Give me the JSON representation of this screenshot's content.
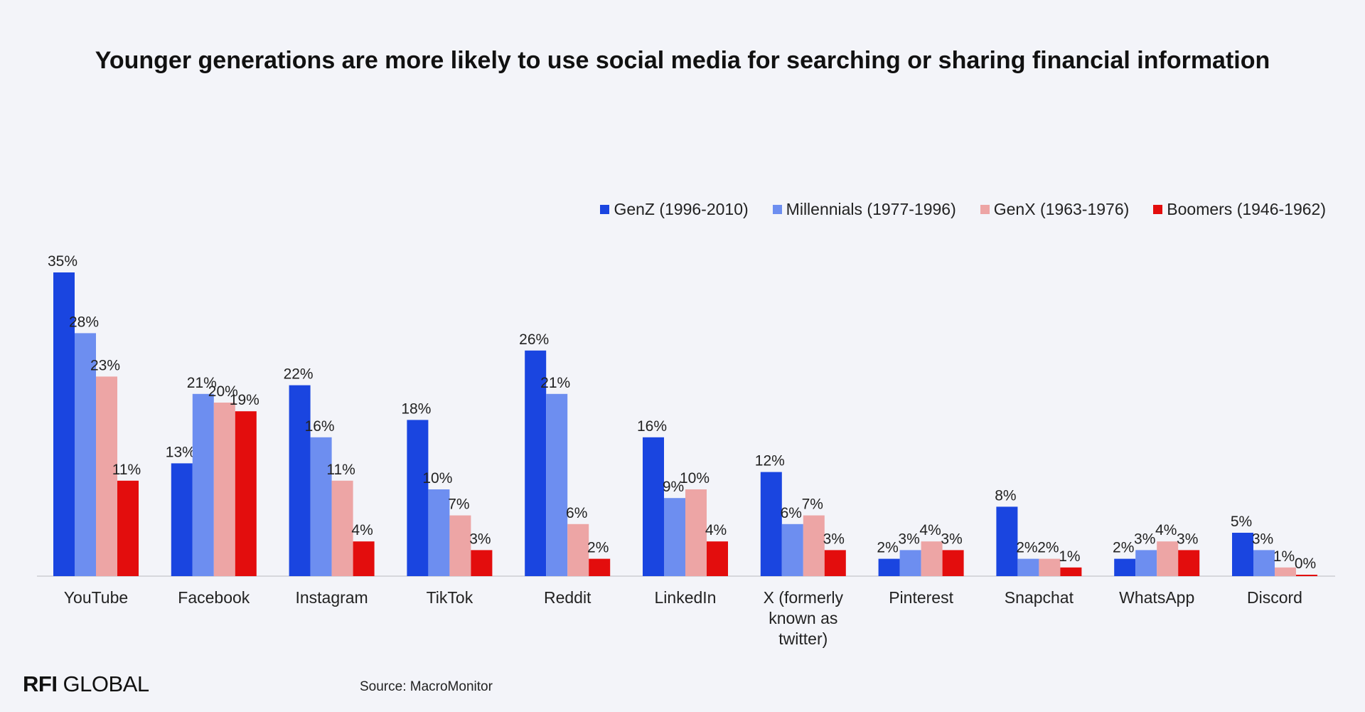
{
  "chart_data": {
    "type": "bar",
    "title": "Younger generations are more likely to use social media for searching or sharing financial information",
    "categories": [
      "YouTube",
      "Facebook",
      "Instagram",
      "TikTok",
      "Reddit",
      "LinkedIn",
      "X (formerly known as twitter)",
      "Pinterest",
      "Snapchat",
      "WhatsApp",
      "Discord"
    ],
    "category_lines": [
      [
        "YouTube"
      ],
      [
        "Facebook"
      ],
      [
        "Instagram"
      ],
      [
        "TikTok"
      ],
      [
        "Reddit"
      ],
      [
        "LinkedIn"
      ],
      [
        "X (formerly",
        "known as",
        "twitter)"
      ],
      [
        "Pinterest"
      ],
      [
        "Snapchat"
      ],
      [
        "WhatsApp"
      ],
      [
        "Discord"
      ]
    ],
    "series": [
      {
        "name": "GenZ (1996-2010)",
        "color": "#1a45e0",
        "values": [
          35,
          13,
          22,
          18,
          26,
          16,
          12,
          2,
          8,
          2,
          5
        ]
      },
      {
        "name": "Millennials (1977-1996)",
        "color": "#6d8ef0",
        "values": [
          28,
          21,
          16,
          10,
          21,
          9,
          6,
          3,
          2,
          3,
          3
        ]
      },
      {
        "name": "GenX (1963-1976)",
        "color": "#eda5a5",
        "values": [
          23,
          20,
          11,
          7,
          6,
          10,
          7,
          4,
          2,
          4,
          1
        ]
      },
      {
        "name": "Boomers (1946-1962)",
        "color": "#e30d0d",
        "values": [
          11,
          19,
          4,
          3,
          2,
          4,
          3,
          3,
          1,
          3,
          0
        ]
      }
    ],
    "value_suffix": "%",
    "xlabel": "",
    "ylabel": "",
    "ylim": [
      0,
      35
    ],
    "grid": false,
    "legend_position": "top-right"
  },
  "footer": {
    "logo_bold": "RFI",
    "logo_rest": " GLOBAL",
    "source": "Source: MacroMonitor"
  }
}
